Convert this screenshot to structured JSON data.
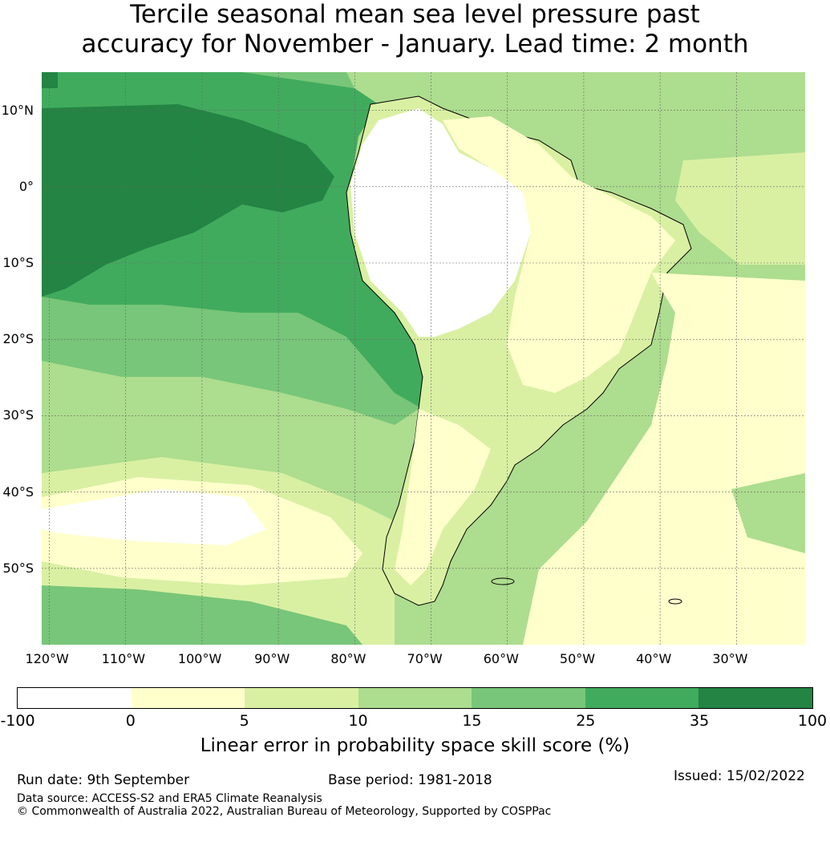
{
  "title": {
    "line1": "Tercile seasonal mean sea level pressure past",
    "line2": "accuracy for November - January. Lead time: 2 month"
  },
  "map": {
    "lon_labels": [
      "120°W",
      "110°W",
      "100°W",
      "90°W",
      "80°W",
      "70°W",
      "60°W",
      "50°W",
      "40°W",
      "30°W"
    ],
    "lat_labels": [
      "10°N",
      "0°",
      "10°S",
      "20°S",
      "30°S",
      "40°S",
      "50°S"
    ],
    "extent": {
      "lon_min": -121,
      "lon_max": -21,
      "lat_min": -60,
      "lat_max": 15
    }
  },
  "colorbar": {
    "tick_labels": [
      "-100",
      "0",
      "5",
      "10",
      "15",
      "25",
      "35",
      "100"
    ],
    "colors": [
      "#ffffff",
      "#ffffcc",
      "#d9f0a3",
      "#addd8e",
      "#78c679",
      "#41ab5d",
      "#238443"
    ],
    "label": "Linear error in probability space skill score (%)"
  },
  "footer": {
    "run_date": "Run date: 9th September",
    "base_period": "Base period: 1981-2018",
    "issued": "Issued: 15/02/2022",
    "data_source": "Data source: ACCESS-S2 and ERA5 Climate Reanalysis",
    "copyright": "© Commonwealth of Australia 2022, Australian Bureau of Meteorology, Supported by COSPPac"
  }
}
